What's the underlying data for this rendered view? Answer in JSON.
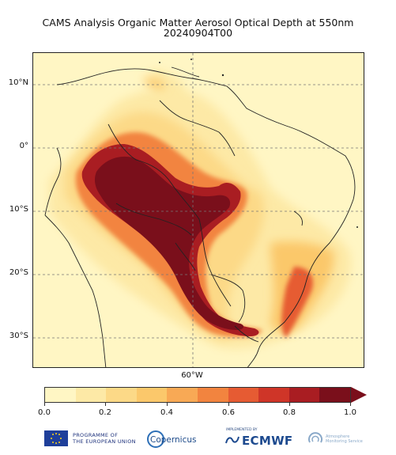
{
  "title": {
    "line1": "CAMS Analysis Organic Matter Aerosol Optical Depth at 550nm",
    "line2": "20240904T00"
  },
  "axes": {
    "lat_labels": [
      "10°N",
      "0°",
      "10°S",
      "20°S",
      "30°S"
    ],
    "lon_labels": [
      "60°W"
    ]
  },
  "colorbar": {
    "ticks": [
      "0.0",
      "0.2",
      "0.4",
      "0.6",
      "0.8",
      "1.0"
    ],
    "colors": [
      "#fff6c4",
      "#fde9a6",
      "#fcd987",
      "#fbc86b",
      "#f8a955",
      "#f2843f",
      "#e65b33",
      "#cf3528",
      "#a91d22",
      "#7a0f1b"
    ],
    "extend": "max",
    "range": [
      0.0,
      1.0
    ]
  },
  "logos": {
    "eu_text_line1": "PROGRAMME OF",
    "eu_text_line2": "THE EUROPEAN UNION",
    "copernicus": "Copernicus",
    "ecmwf_small": "IMPLEMENTED BY",
    "ecmwf": "ECMWF",
    "cams_line1": "Atmosphere",
    "cams_line2": "Monitoring Service"
  }
}
